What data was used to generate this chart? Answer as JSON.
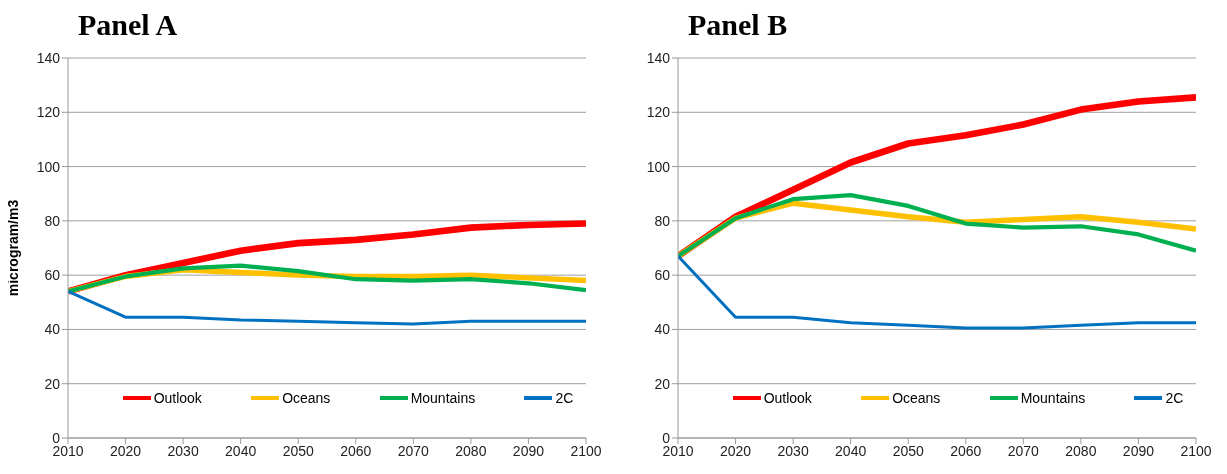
{
  "chart_data": [
    {
      "type": "line",
      "title": "Panel A",
      "ylabel": "microgram/m3",
      "x": [
        2010,
        2020,
        2030,
        2040,
        2050,
        2060,
        2070,
        2080,
        2090,
        2100
      ],
      "xlim": [
        2010,
        2100
      ],
      "xticks": [
        2010,
        2020,
        2030,
        2040,
        2050,
        2060,
        2070,
        2080,
        2090,
        2100
      ],
      "ylim": [
        0,
        140
      ],
      "yticks": [
        0,
        20,
        40,
        60,
        80,
        100,
        120,
        140
      ],
      "grid": "y",
      "legend": "bottom",
      "marker": "none",
      "line_style": "solid",
      "series": [
        {
          "name": "Outlook",
          "color": "#ff0000",
          "values": [
            54,
            60,
            64.5,
            69,
            71.8,
            73,
            75,
            77.5,
            78.5,
            79
          ]
        },
        {
          "name": "Oceans",
          "color": "#ffc000",
          "values": [
            54,
            59.5,
            62,
            61,
            60,
            59.5,
            59.5,
            60,
            59,
            58
          ]
        },
        {
          "name": "Mountains",
          "color": "#00b050",
          "values": [
            54,
            59.5,
            62.5,
            63.5,
            61.5,
            58.5,
            58,
            58.5,
            57,
            54.5
          ]
        },
        {
          "name": "2C",
          "color": "#0070c0",
          "values": [
            54,
            44.5,
            44.5,
            43.5,
            43,
            42.5,
            42,
            43,
            43,
            43
          ]
        }
      ]
    },
    {
      "type": "line",
      "title": "Panel B",
      "x": [
        2010,
        2020,
        2030,
        2040,
        2050,
        2060,
        2070,
        2080,
        2090,
        2100
      ],
      "xlim": [
        2010,
        2100
      ],
      "xticks": [
        2010,
        2020,
        2030,
        2040,
        2050,
        2060,
        2070,
        2080,
        2090,
        2100
      ],
      "ylim": [
        0,
        140
      ],
      "yticks": [
        0,
        20,
        40,
        60,
        80,
        100,
        120,
        140
      ],
      "grid": "y",
      "legend": "bottom",
      "marker": "none",
      "line_style": "solid",
      "series": [
        {
          "name": "Outlook",
          "color": "#ff0000",
          "values": [
            67,
            81.5,
            91.5,
            101.5,
            108.5,
            111.5,
            115.5,
            121,
            124,
            125.5
          ]
        },
        {
          "name": "Oceans",
          "color": "#ffc000",
          "values": [
            67,
            81,
            86.5,
            84,
            81.5,
            79.5,
            80.5,
            81.5,
            79.5,
            77
          ]
        },
        {
          "name": "Mountains",
          "color": "#00b050",
          "values": [
            67,
            81,
            88,
            89.5,
            85.5,
            79,
            77.5,
            78,
            75,
            69
          ]
        },
        {
          "name": "2C",
          "color": "#0070c0",
          "values": [
            67,
            44.5,
            44.5,
            42.5,
            41.5,
            40.5,
            40.5,
            41.5,
            42.5,
            42.5
          ]
        }
      ]
    }
  ]
}
